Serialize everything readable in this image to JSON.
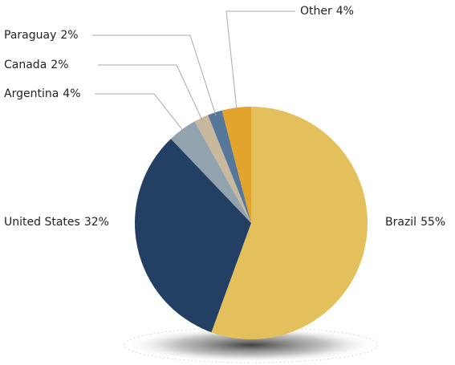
{
  "chart_data": {
    "type": "pie",
    "categories": [
      "Brazil",
      "United States",
      "Argentina",
      "Canada",
      "Paraguay",
      "Other"
    ],
    "values": [
      55,
      32,
      4,
      2,
      2,
      4
    ],
    "value_labels": [
      "55%",
      "32%",
      "4%",
      "2%",
      "2%",
      "4%"
    ],
    "colors": [
      "#e4c05c",
      "#233f63",
      "#93a3ae",
      "#c8b89e",
      "#54779a",
      "#e2a42c"
    ]
  }
}
